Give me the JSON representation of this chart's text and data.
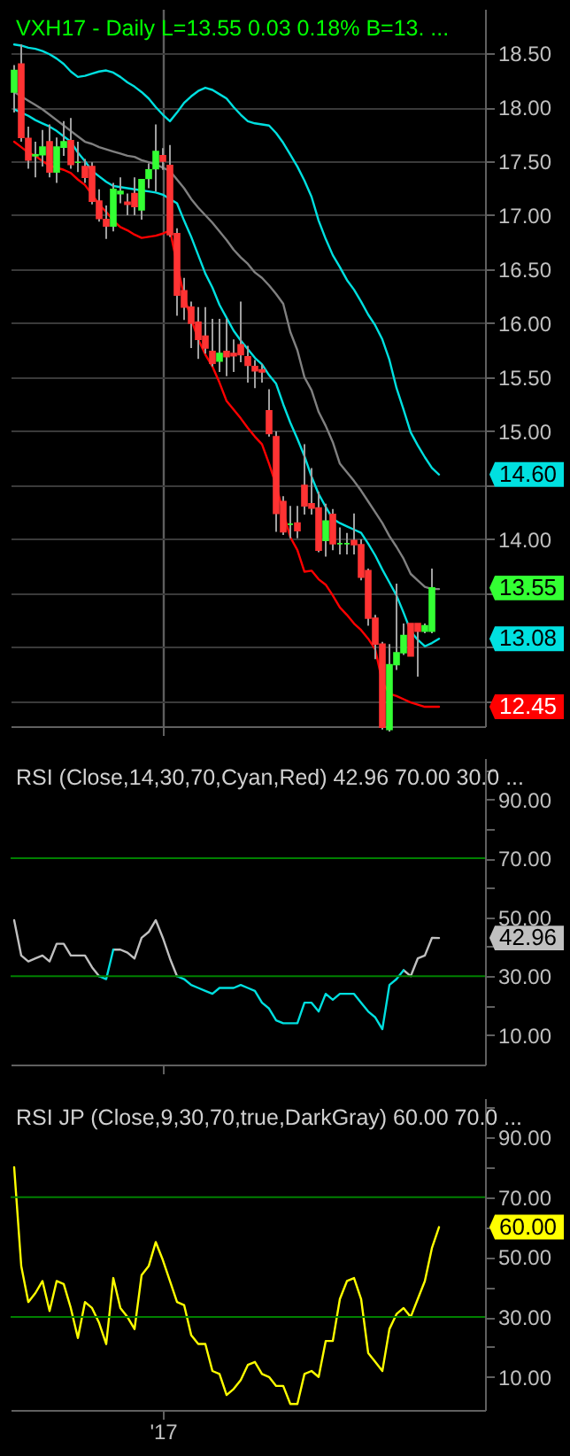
{
  "chart_data": [
    {
      "type": "candlestick",
      "title": "VXH17 - Daily  L=13.55  0.03  0.18%  B=13. ...",
      "categories": [
        null,
        null,
        null,
        null,
        null,
        null,
        null,
        null,
        null,
        null,
        null,
        null,
        null,
        null,
        null,
        null,
        null,
        null,
        null,
        null,
        null,
        null,
        null,
        null,
        null,
        null,
        null,
        null,
        null,
        null,
        null,
        null,
        null,
        null,
        null,
        null,
        null,
        null,
        null,
        null,
        null,
        null,
        null,
        null,
        null,
        null,
        null,
        null,
        null,
        null,
        null,
        null,
        null,
        null,
        null,
        null,
        null,
        null,
        null,
        null,
        null,
        null,
        null,
        null,
        null,
        null,
        null
      ],
      "ohlc": [
        [
          18.14,
          18.39,
          17.95,
          18.34
        ],
        [
          18.4,
          18.58,
          17.68,
          17.72
        ],
        [
          17.71,
          17.82,
          17.43,
          17.51
        ],
        [
          17.55,
          17.68,
          17.35,
          17.56
        ],
        [
          17.56,
          17.79,
          17.45,
          17.63
        ],
        [
          17.68,
          17.84,
          17.35,
          17.4
        ],
        [
          17.4,
          17.72,
          17.3,
          17.63
        ],
        [
          17.63,
          17.87,
          17.55,
          17.68
        ],
        [
          17.69,
          17.9,
          17.43,
          17.47
        ],
        [
          17.49,
          17.68,
          17.4,
          17.49
        ],
        [
          17.45,
          17.52,
          17.3,
          17.35
        ],
        [
          17.45,
          17.49,
          17.1,
          17.13
        ],
        [
          17.13,
          17.24,
          16.94,
          16.97
        ],
        [
          16.96,
          17.09,
          16.78,
          16.9
        ],
        [
          16.9,
          17.3,
          16.85,
          17.24
        ],
        [
          17.2,
          17.35,
          17.11,
          17.22
        ],
        [
          17.12,
          17.2,
          17.0,
          17.1
        ],
        [
          17.2,
          17.35,
          17.0,
          17.08
        ],
        [
          17.05,
          17.33,
          16.96,
          17.33
        ],
        [
          17.34,
          17.48,
          17.25,
          17.42
        ],
        [
          17.43,
          17.84,
          17.22,
          17.59
        ],
        [
          17.55,
          17.62,
          17.42,
          17.5
        ],
        [
          17.46,
          17.65,
          16.8,
          16.82
        ],
        [
          16.83,
          16.88,
          16.07,
          16.26
        ],
        [
          16.3,
          16.42,
          16.03,
          16.15
        ],
        [
          16.15,
          16.2,
          15.77,
          16.0
        ],
        [
          16.01,
          16.15,
          15.67,
          15.85
        ],
        [
          15.88,
          16.15,
          15.72,
          15.77
        ],
        [
          15.74,
          16.04,
          15.6,
          15.63
        ],
        [
          15.65,
          16.04,
          15.55,
          15.72
        ],
        [
          15.74,
          16.04,
          15.51,
          15.69
        ],
        [
          15.72,
          15.85,
          15.55,
          15.7
        ],
        [
          15.8,
          16.2,
          15.64,
          15.71
        ],
        [
          15.69,
          15.79,
          15.45,
          15.61
        ],
        [
          15.6,
          15.66,
          15.4,
          15.56
        ],
        [
          15.57,
          15.62,
          15.45,
          15.55
        ],
        [
          15.19,
          15.39,
          14.95,
          14.98
        ],
        [
          14.95,
          15.0,
          14.07,
          14.24
        ],
        [
          14.35,
          14.4,
          14.04,
          14.07
        ],
        [
          14.14,
          14.31,
          14.01,
          14.14
        ],
        [
          14.15,
          14.31,
          14.01,
          14.08
        ],
        [
          14.5,
          14.88,
          14.23,
          14.31
        ],
        [
          14.33,
          14.66,
          14.23,
          14.29
        ],
        [
          14.29,
          14.44,
          13.88,
          13.9
        ],
        [
          13.99,
          14.33,
          13.84,
          14.17
        ],
        [
          14.23,
          14.28,
          13.9,
          13.96
        ],
        [
          13.96,
          14.11,
          13.86,
          13.96
        ],
        [
          13.96,
          14.06,
          13.86,
          13.96
        ],
        [
          13.99,
          14.24,
          13.86,
          13.95
        ],
        [
          13.95,
          14.0,
          13.62,
          13.65
        ],
        [
          13.71,
          13.73,
          13.2,
          13.27
        ],
        [
          13.27,
          13.3,
          12.89,
          13.03
        ],
        [
          13.03,
          13.05,
          12.24,
          12.26
        ],
        [
          12.24,
          13.03,
          12.22,
          12.84
        ],
        [
          12.84,
          13.59,
          12.79,
          12.95
        ],
        [
          12.95,
          13.22,
          12.93,
          13.11
        ],
        [
          13.22,
          13.22,
          12.92,
          12.92
        ],
        [
          13.22,
          13.22,
          12.73,
          13.15
        ],
        [
          13.15,
          13.22,
          13.13,
          13.2
        ],
        [
          13.15,
          13.73,
          13.13,
          13.55
        ],
        null,
        null,
        null,
        null,
        null,
        null,
        null
      ],
      "colors": [
        "#33ff33",
        "#ff3333",
        "#ff3333",
        "#33ff33",
        "#33ff33",
        "#ff3333",
        "#33ff33",
        "#33ff33",
        "#ff3333",
        "#33ff33",
        "#ff3333",
        "#ff3333",
        "#ff3333",
        "#ff3333",
        "#33ff33",
        "#33ff33",
        "#ff3333",
        "#ff3333",
        "#33ff33",
        "#33ff33",
        "#33ff33",
        "#ff3333",
        "#ff3333",
        "#ff3333",
        "#ff3333",
        "#ff3333",
        "#ff3333",
        "#ff3333",
        "#ff3333",
        "#33ff33",
        "#ff3333",
        "#ff3333",
        "#ff3333",
        "#ff3333",
        "#ff3333",
        "#ff3333",
        "#ff3333",
        "#ff3333",
        "#ff3333",
        "#33ff33",
        "#ff3333",
        "#ff3333",
        "#ff3333",
        "#ff3333",
        "#33ff33",
        "#ff3333",
        "#33ff33",
        "#33ff33",
        "#ff3333",
        "#ff3333",
        "#ff3333",
        "#ff3333",
        "#ff3333",
        "#33ff33",
        "#33ff33",
        "#33ff33",
        "#ff3333",
        "#ff3333",
        "#33ff33",
        "#33ff33",
        null,
        null,
        null,
        null,
        null,
        null,
        null
      ],
      "series": [
        {
          "type": "line",
          "color": "#00e0e0",
          "values": [
            18.58,
            18.57,
            18.55,
            18.54,
            18.52,
            18.49,
            18.45,
            18.4,
            18.33,
            18.28,
            18.29,
            18.31,
            18.33,
            18.34,
            18.32,
            18.28,
            18.23,
            18.19,
            18.14,
            18.08,
            18.0,
            17.93,
            17.87,
            17.95,
            18.04,
            18.1,
            18.15,
            18.18,
            18.16,
            18.12,
            18.08,
            18.0,
            17.93,
            17.87,
            17.85,
            17.84,
            17.83,
            17.76,
            17.67,
            17.56,
            17.45,
            17.32,
            17.17,
            16.95,
            16.78,
            16.63,
            16.52,
            16.4,
            16.31,
            16.2,
            16.08,
            15.98,
            15.85,
            15.66,
            15.4,
            15.2,
            14.99,
            14.87,
            14.76,
            14.66,
            14.6,
            null,
            null,
            null,
            null,
            null,
            null
          ]
        },
        {
          "type": "line",
          "color": "#808080",
          "values": [
            18.14,
            18.1,
            18.06,
            18.02,
            17.98,
            17.93,
            17.88,
            17.83,
            17.78,
            17.73,
            17.68,
            17.66,
            17.63,
            17.61,
            17.59,
            17.57,
            17.55,
            17.54,
            17.51,
            17.49,
            17.47,
            17.44,
            17.41,
            17.33,
            17.25,
            17.15,
            17.07,
            17.0,
            16.93,
            16.85,
            16.77,
            16.68,
            16.61,
            16.55,
            16.47,
            16.42,
            16.35,
            16.27,
            16.18,
            15.92,
            15.75,
            15.5,
            15.38,
            15.18,
            15.05,
            14.9,
            14.7,
            14.62,
            14.54,
            14.45,
            14.35,
            14.25,
            14.15,
            14.03,
            13.93,
            13.82,
            13.68,
            13.62,
            13.56,
            13.54,
            13.54,
            null,
            null,
            null,
            null,
            null,
            null
          ]
        },
        {
          "type": "line",
          "color": "#00e0e0",
          "values": [
            17.98,
            17.95,
            17.92,
            17.88,
            17.85,
            17.82,
            17.78,
            17.73,
            17.68,
            17.58,
            17.5,
            17.41,
            17.36,
            17.31,
            17.27,
            17.26,
            17.25,
            17.24,
            17.23,
            17.22,
            17.21,
            17.19,
            17.15,
            17.11,
            16.95,
            16.8,
            16.63,
            16.46,
            16.33,
            16.17,
            16.05,
            15.93,
            15.84,
            15.76,
            15.68,
            15.62,
            15.52,
            15.44,
            15.25,
            15.08,
            14.93,
            14.77,
            14.58,
            14.42,
            14.3,
            14.19,
            14.15,
            14.12,
            14.09,
            14.06,
            13.96,
            13.85,
            13.72,
            13.6,
            13.48,
            13.32,
            13.15,
            13.07,
            13.01,
            13.04,
            13.08,
            null,
            null,
            null,
            null,
            null,
            null
          ]
        },
        {
          "type": "line",
          "color": "#ff0000",
          "values": [
            17.68,
            17.63,
            17.58,
            17.55,
            17.5,
            17.46,
            17.44,
            17.42,
            17.39,
            17.33,
            17.28,
            17.19,
            17.1,
            17.03,
            16.95,
            16.89,
            16.86,
            16.82,
            16.79,
            16.8,
            16.81,
            16.83,
            16.86,
            16.55,
            16.25,
            16.04,
            15.85,
            15.71,
            15.6,
            15.45,
            15.28,
            15.2,
            15.12,
            15.03,
            14.95,
            14.88,
            14.7,
            14.5,
            14.25,
            14.02,
            13.9,
            13.7,
            13.71,
            13.63,
            13.58,
            13.48,
            13.37,
            13.3,
            13.22,
            13.16,
            13.08,
            12.98,
            12.68,
            12.57,
            12.55,
            12.52,
            12.49,
            12.47,
            12.45,
            12.45,
            12.45,
            null,
            null,
            null,
            null,
            null,
            null
          ]
        }
      ],
      "ylim": [
        12.27,
        18.91
      ],
      "yticks": [
        {
          "value": 12.5,
          "label": null
        },
        {
          "value": 13,
          "label": null
        },
        {
          "value": 13.5,
          "label": null
        },
        {
          "value": 14,
          "label": "14.00"
        },
        {
          "value": 14.5,
          "label": null
        },
        {
          "value": 15,
          "label": "15.00"
        },
        {
          "value": 15.5,
          "label": "15.50"
        },
        {
          "value": 16,
          "label": "16.00"
        },
        {
          "value": 16.5,
          "label": "16.50"
        },
        {
          "value": 17,
          "label": "17.00"
        },
        {
          "value": 17.5,
          "label": "17.50"
        },
        {
          "value": 18,
          "label": "18.00"
        },
        {
          "value": 18.5,
          "label": "18.50"
        }
      ],
      "grid": true,
      "tick_labels": "y",
      "annotations": [
        {
          "text": "14.60",
          "y": 14.6
        },
        {
          "text": "13.55",
          "y": 13.55
        },
        {
          "text": "13.08",
          "y": 13.08
        },
        {
          "text": "12.45",
          "y": 12.45
        }
      ]
    },
    {
      "type": "line",
      "title": "RSI (Close,14,30,70,Cyan,Red)  42.96  70.00  30.0 ...",
      "categories": [
        null,
        null,
        null,
        null,
        null,
        null,
        null,
        null,
        null,
        null,
        null,
        null,
        null,
        null,
        null,
        null,
        null,
        null,
        null,
        null,
        null,
        null,
        null,
        null,
        null,
        null,
        null,
        null,
        null,
        null,
        null,
        null,
        null,
        null,
        null,
        null,
        null,
        null,
        null,
        null,
        null,
        null,
        null,
        null,
        null,
        null,
        null,
        null,
        null,
        null,
        null,
        null,
        null,
        null,
        null,
        null,
        null,
        null,
        null,
        null,
        null,
        null,
        null,
        null,
        null,
        null,
        null
      ],
      "series": [
        {
          "color": "#c0c0c0",
          "values": [
            49,
            37,
            35,
            36,
            37,
            35,
            41,
            41,
            37,
            37,
            37,
            33,
            30,
            null,
            39,
            39,
            38,
            36,
            43,
            45,
            49,
            43,
            36,
            30,
            null,
            null,
            null,
            null,
            null,
            null,
            null,
            null,
            null,
            null,
            null,
            null,
            null,
            null,
            null,
            null,
            null,
            null,
            null,
            null,
            null,
            null,
            null,
            null,
            null,
            null,
            null,
            null,
            null,
            null,
            null,
            32,
            30,
            36,
            37,
            43,
            42.96,
            null,
            null,
            null,
            null,
            null,
            null
          ]
        },
        {
          "color": "#00e0e0",
          "values": [
            null,
            null,
            null,
            null,
            null,
            null,
            null,
            null,
            null,
            null,
            null,
            null,
            30,
            29,
            39,
            null,
            null,
            null,
            null,
            null,
            null,
            null,
            null,
            30,
            29,
            27,
            26,
            25,
            24,
            26,
            26,
            26,
            27,
            26,
            25,
            21,
            19,
            15,
            14,
            14,
            14,
            21,
            21,
            18,
            24,
            22,
            24,
            24,
            24,
            21,
            18,
            16,
            12,
            27,
            29,
            32,
            null,
            null,
            null,
            null,
            null,
            null,
            null,
            null,
            null,
            null,
            null
          ]
        }
      ],
      "ylim": [
        0,
        104
      ],
      "yticks": [
        {
          "value": 10,
          "label": "10.00"
        },
        {
          "value": 20,
          "label": null
        },
        {
          "value": 30,
          "label": "30.00"
        },
        {
          "value": 40,
          "label": null
        },
        {
          "value": 50,
          "label": "50.00"
        },
        {
          "value": 60,
          "label": null
        },
        {
          "value": 70,
          "label": "70.00"
        },
        {
          "value": 80,
          "label": null
        },
        {
          "value": 90,
          "label": "90.00"
        },
        {
          "value": 100,
          "label": null
        }
      ],
      "tick_labels": "y",
      "ref_lines": [
        {
          "axis": "y",
          "value": 70,
          "color": "#008000"
        },
        {
          "axis": "y",
          "value": 30,
          "color": "#008000"
        }
      ],
      "annotations": [
        {
          "text": "42.96",
          "y": 42.96
        }
      ]
    },
    {
      "type": "line",
      "title": "RSI JP (Close,9,30,70,true,DarkGray)  60.00  70.0 ...",
      "categories": [
        null,
        null,
        null,
        null,
        null,
        null,
        null,
        null,
        null,
        null,
        null,
        null,
        null,
        null,
        null,
        null,
        null,
        null,
        null,
        null,
        null,
        "'17",
        null,
        null,
        null,
        null,
        null,
        null,
        null,
        null,
        null,
        null,
        null,
        null,
        null,
        null,
        null,
        null,
        null,
        null,
        null,
        null,
        null,
        null,
        null,
        null,
        null,
        null,
        null,
        null,
        null,
        null,
        null,
        null,
        null,
        null,
        null,
        null,
        null,
        null,
        null,
        null,
        null,
        null,
        null,
        null,
        null
      ],
      "series": [
        {
          "color": "#ffff00",
          "values": [
            80,
            47,
            35,
            38,
            42,
            32,
            42,
            41,
            33,
            23,
            35,
            33,
            28,
            21,
            43,
            33,
            30,
            26,
            44,
            47,
            55,
            49,
            42,
            35,
            34,
            24,
            21,
            21,
            12,
            11,
            4,
            6,
            9,
            14,
            15,
            11,
            10,
            7,
            7,
            1,
            1,
            11,
            12,
            10,
            22,
            22,
            36,
            42,
            43,
            36,
            18,
            15,
            12,
            26,
            31,
            33,
            30,
            36,
            42,
            53,
            60,
            null,
            null,
            null,
            null,
            null,
            null
          ]
        }
      ],
      "ylim": [
        -1,
        103
      ],
      "yticks": [
        {
          "value": 10,
          "label": "10.00"
        },
        {
          "value": 20,
          "label": null
        },
        {
          "value": 30,
          "label": "30.00"
        },
        {
          "value": 40,
          "label": null
        },
        {
          "value": 50,
          "label": "50.00"
        },
        {
          "value": 60,
          "label": null
        },
        {
          "value": 70,
          "label": "70.00"
        },
        {
          "value": 80,
          "label": null
        },
        {
          "value": 90,
          "label": "90.00"
        },
        {
          "value": 100,
          "label": null
        }
      ],
      "ref_lines": [
        {
          "axis": "y",
          "value": 70,
          "color": "#008000"
        },
        {
          "axis": "y",
          "value": 30,
          "color": "#008000"
        }
      ],
      "annotations": [
        {
          "text": "60.00",
          "y": 60
        }
      ]
    }
  ]
}
